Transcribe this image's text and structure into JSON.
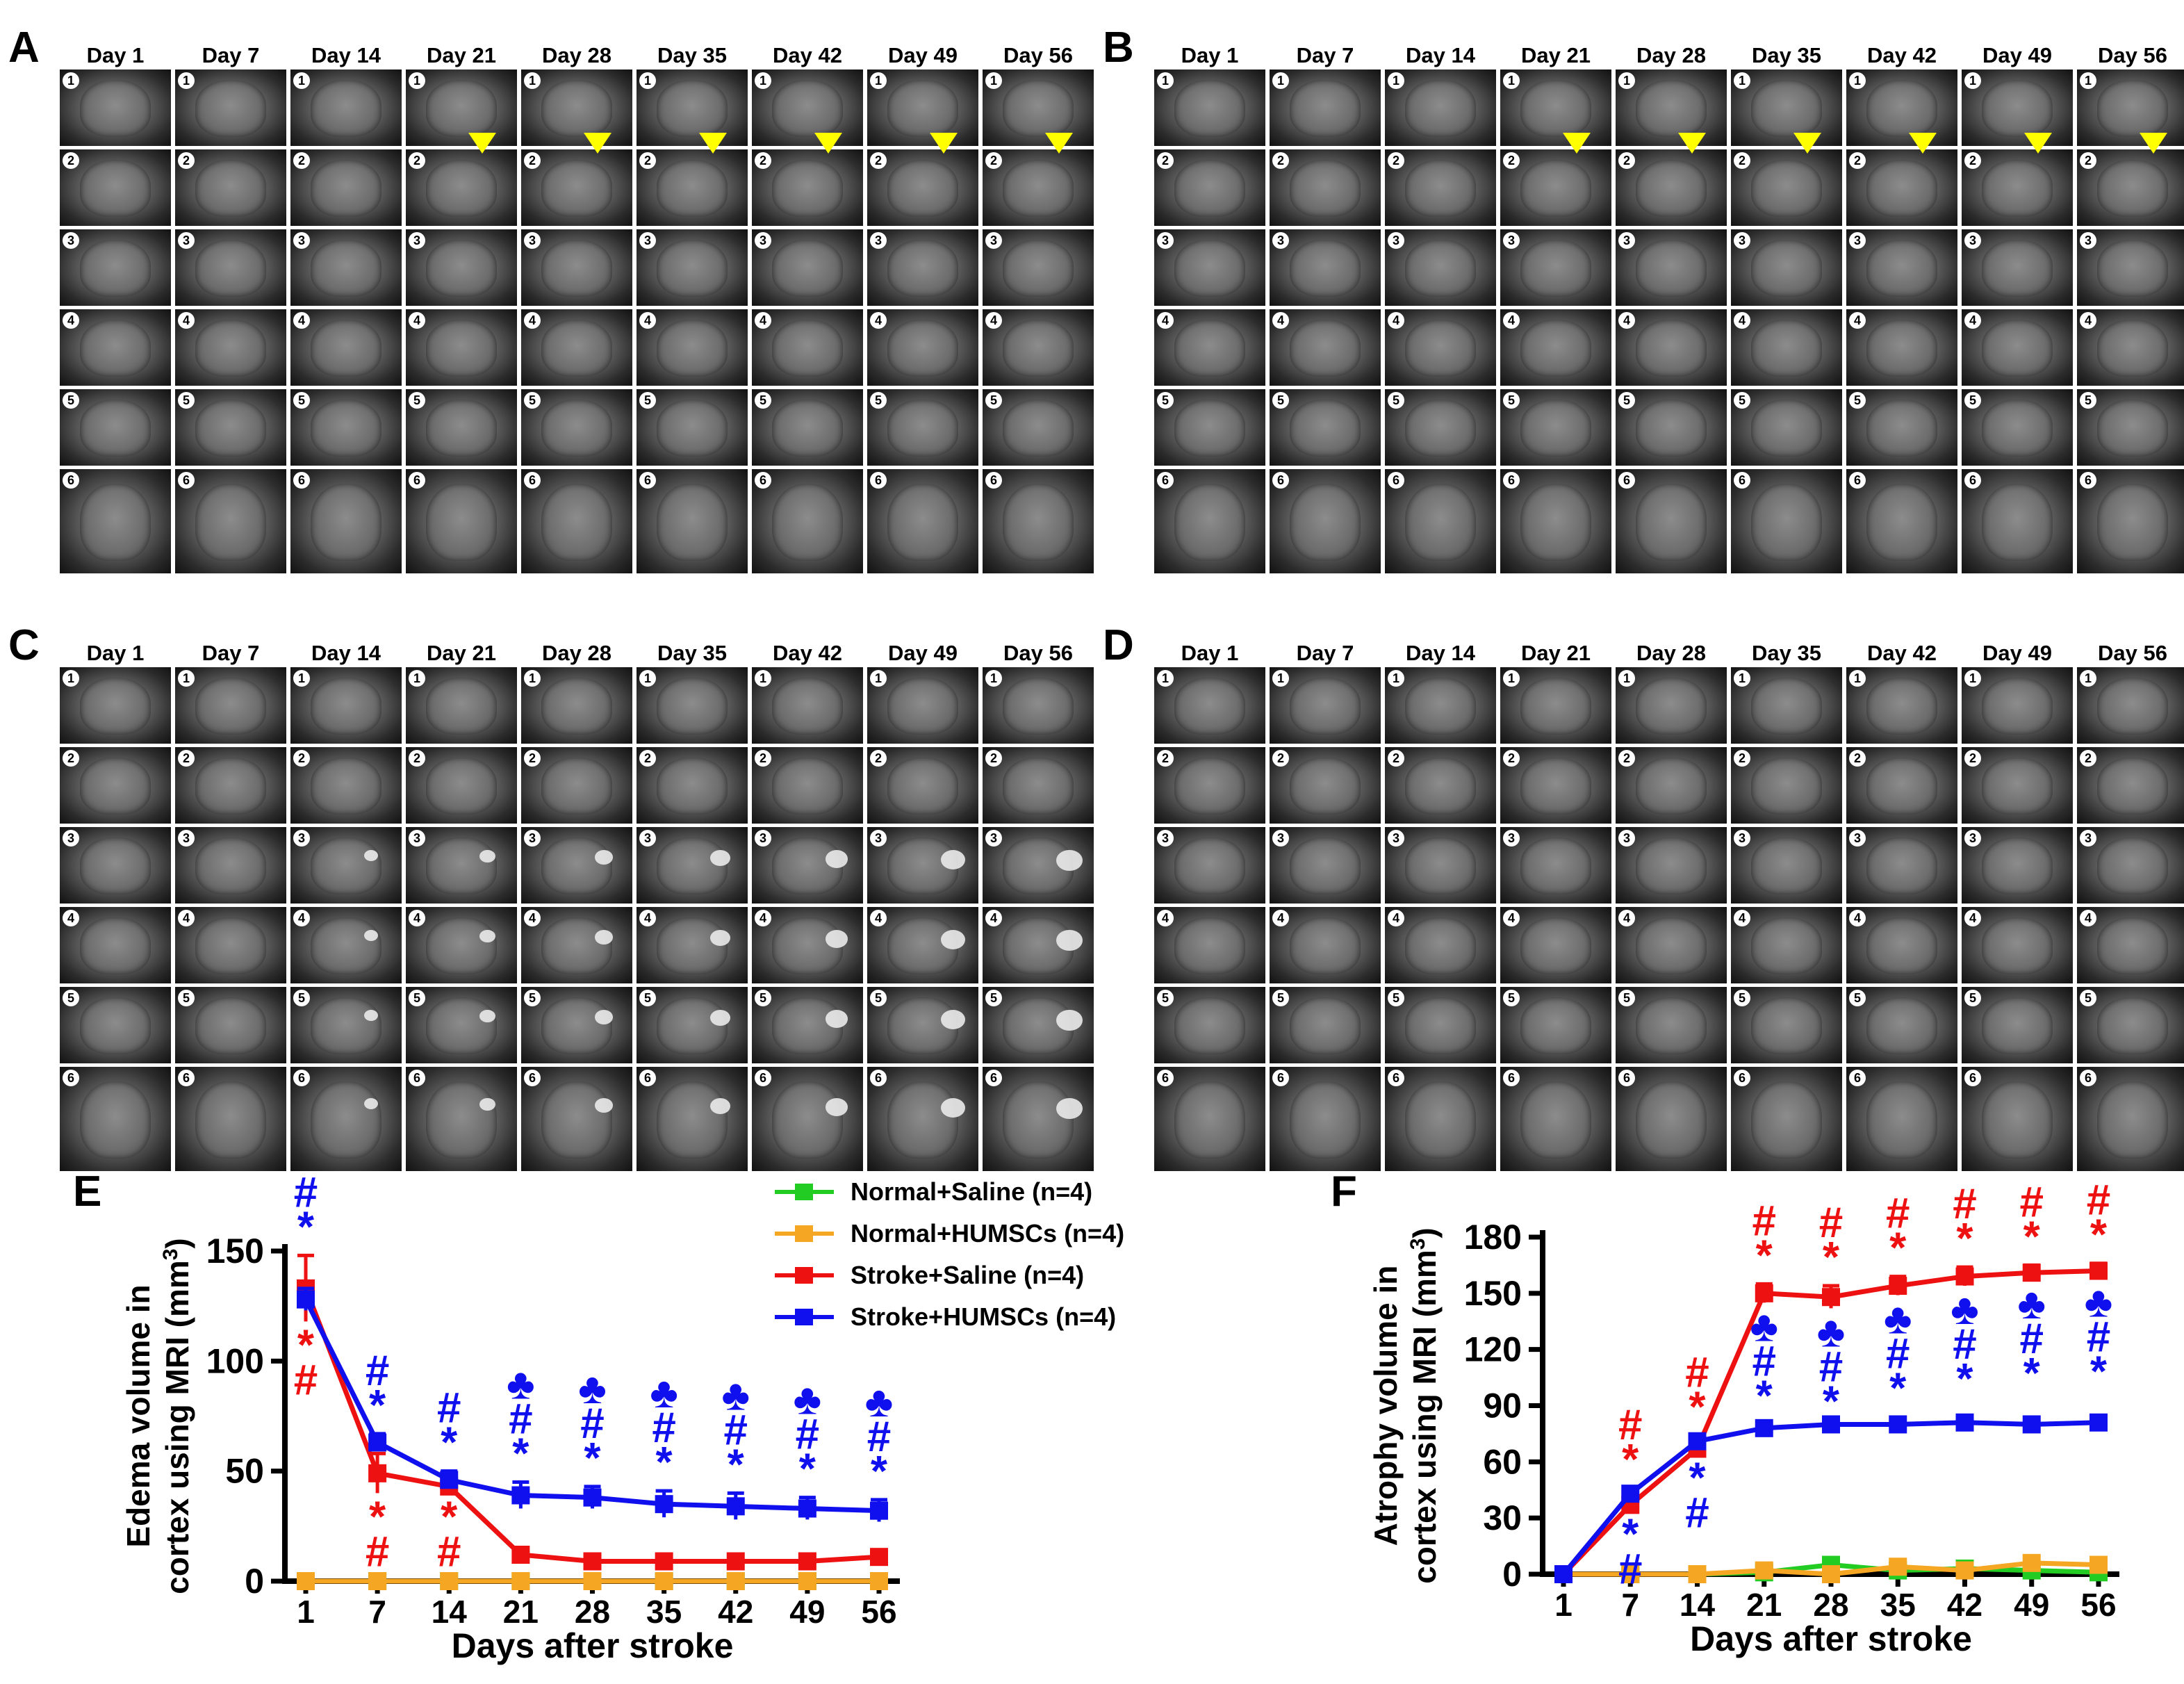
{
  "panels_mri": [
    {
      "letter": "A",
      "days": [
        "Day 1",
        "Day 7",
        "Day 14",
        "Day 21",
        "Day 28",
        "Day 35",
        "Day 42",
        "Day 49",
        "Day 56"
      ],
      "slices": [
        "1",
        "2",
        "3",
        "4",
        "5",
        "6"
      ],
      "arrow_days": [
        "Day 21",
        "Day 28",
        "Day 35",
        "Day 42",
        "Day 49",
        "Day 56"
      ]
    },
    {
      "letter": "B",
      "days": [
        "Day 1",
        "Day 7",
        "Day 14",
        "Day 21",
        "Day 28",
        "Day 35",
        "Day 42",
        "Day 49",
        "Day 56"
      ],
      "slices": [
        "1",
        "2",
        "3",
        "4",
        "5",
        "6"
      ],
      "arrow_days": [
        "Day 21",
        "Day 28",
        "Day 35",
        "Day 42",
        "Day 49",
        "Day 56"
      ]
    },
    {
      "letter": "C",
      "days": [
        "Day 1",
        "Day 7",
        "Day 14",
        "Day 21",
        "Day 28",
        "Day 35",
        "Day 42",
        "Day 49",
        "Day 56"
      ],
      "slices": [
        "1",
        "2",
        "3",
        "4",
        "5",
        "6"
      ],
      "arrow_days": []
    },
    {
      "letter": "D",
      "days": [
        "Day 1",
        "Day 7",
        "Day 14",
        "Day 21",
        "Day 28",
        "Day 35",
        "Day 42",
        "Day 49",
        "Day 56"
      ],
      "slices": [
        "1",
        "2",
        "3",
        "4",
        "5",
        "6"
      ],
      "arrow_days": []
    }
  ],
  "chart_data": [
    {
      "panel": "E",
      "type": "line",
      "ylabel_line1": "Edema volume in",
      "ylabel_line2": "cortex using MRI (mm",
      "ylabel_sup": "3",
      "ylabel_close": ")",
      "xlabel": "Days after stroke",
      "categories": [
        "1",
        "7",
        "14",
        "21",
        "28",
        "35",
        "42",
        "49",
        "56"
      ],
      "ylim": [
        0,
        150
      ],
      "yticks": [
        "0",
        "50",
        "100",
        "150"
      ],
      "series": [
        {
          "name": "Normal+Saline (n=4)",
          "color": "#22cc22",
          "values": [
            0,
            0,
            0,
            0,
            0,
            0,
            0,
            0,
            0
          ],
          "errors": [
            0,
            0,
            0,
            0,
            0,
            0,
            0,
            0,
            0
          ]
        },
        {
          "name": "Normal+HUMSCs (n=4)",
          "color": "#f5a623",
          "values": [
            0,
            0,
            0,
            0,
            0,
            0,
            0,
            0,
            0
          ],
          "errors": [
            0,
            0,
            0,
            0,
            0,
            0,
            0,
            0,
            0
          ]
        },
        {
          "name": "Stroke+Saline (n=4)",
          "color": "#ee1111",
          "values": [
            133,
            49,
            43,
            12,
            9,
            9,
            9,
            9,
            11
          ],
          "errors": [
            15,
            9,
            3,
            2,
            1,
            1,
            1,
            1,
            1
          ]
        },
        {
          "name": "Stroke+HUMSCs (n=4)",
          "color": "#1010ee",
          "values": [
            128,
            63,
            46,
            39,
            38,
            35,
            34,
            33,
            32
          ],
          "errors": [
            5,
            4,
            4,
            6,
            5,
            6,
            6,
            5,
            5
          ]
        }
      ],
      "annotations": [
        {
          "x": "1",
          "pos": "above",
          "color": "#1010ee",
          "glyphs": [
            "#",
            "*"
          ]
        },
        {
          "x": "1",
          "pos": "below",
          "color": "#ee1111",
          "glyphs": [
            "*",
            "#"
          ]
        },
        {
          "x": "7",
          "pos": "above",
          "color": "#1010ee",
          "glyphs": [
            "#",
            "*"
          ]
        },
        {
          "x": "7",
          "pos": "below",
          "color": "#ee1111",
          "glyphs": [
            "*",
            "#"
          ]
        },
        {
          "x": "14",
          "pos": "above",
          "color": "#1010ee",
          "glyphs": [
            "#",
            "*"
          ]
        },
        {
          "x": "14",
          "pos": "below",
          "color": "#ee1111",
          "glyphs": [
            "*",
            "#"
          ]
        },
        {
          "x": "21",
          "pos": "above",
          "color": "#1010ee",
          "glyphs": [
            "♣",
            "#",
            "*"
          ]
        },
        {
          "x": "28",
          "pos": "above",
          "color": "#1010ee",
          "glyphs": [
            "♣",
            "#",
            "*"
          ]
        },
        {
          "x": "35",
          "pos": "above",
          "color": "#1010ee",
          "glyphs": [
            "♣",
            "#",
            "*"
          ]
        },
        {
          "x": "42",
          "pos": "above",
          "color": "#1010ee",
          "glyphs": [
            "♣",
            "#",
            "*"
          ]
        },
        {
          "x": "49",
          "pos": "above",
          "color": "#1010ee",
          "glyphs": [
            "♣",
            "#",
            "*"
          ]
        },
        {
          "x": "56",
          "pos": "above",
          "color": "#1010ee",
          "glyphs": [
            "♣",
            "#",
            "*"
          ]
        }
      ]
    },
    {
      "panel": "F",
      "type": "line",
      "ylabel_line1": "Atrophy volume in",
      "ylabel_line2": "cortex using MRI (mm",
      "ylabel_sup": "3",
      "ylabel_close": ")",
      "xlabel": "Days after stroke",
      "categories": [
        "1",
        "7",
        "14",
        "21",
        "28",
        "35",
        "42",
        "49",
        "56"
      ],
      "ylim": [
        0,
        180
      ],
      "yticks": [
        "0",
        "30",
        "60",
        "90",
        "120",
        "150",
        "180"
      ],
      "series": [
        {
          "name": "Normal+Saline (n=4)",
          "color": "#22cc22",
          "values": [
            0,
            0,
            0,
            1,
            5,
            2,
            3,
            2,
            1
          ],
          "errors": [
            0,
            0,
            0,
            0,
            0,
            0,
            0,
            0,
            0
          ]
        },
        {
          "name": "Normal+HUMSCs (n=4)",
          "color": "#f5a623",
          "values": [
            0,
            0,
            0,
            2,
            0,
            4,
            2,
            6,
            5
          ],
          "errors": [
            0,
            0,
            0,
            0,
            0,
            0,
            0,
            0,
            0
          ]
        },
        {
          "name": "Stroke+Saline (n=4)",
          "color": "#ee1111",
          "values": [
            0,
            37,
            67,
            150,
            148,
            154,
            159,
            161,
            162
          ],
          "errors": [
            0,
            3,
            3,
            5,
            6,
            5,
            5,
            4,
            4
          ]
        },
        {
          "name": "Stroke+HUMSCs (n=4)",
          "color": "#1010ee",
          "values": [
            0,
            43,
            71,
            78,
            80,
            80,
            81,
            80,
            81
          ],
          "errors": [
            0,
            3,
            3,
            3,
            3,
            2,
            2,
            2,
            2
          ]
        }
      ],
      "annotations": [
        {
          "x": "7",
          "pos": "above",
          "color": "#ee1111",
          "glyphs": [
            "#",
            "*"
          ]
        },
        {
          "x": "7",
          "pos": "below",
          "color": "#1010ee",
          "glyphs": [
            "*",
            "#"
          ]
        },
        {
          "x": "14",
          "pos": "above",
          "color": "#ee1111",
          "glyphs": [
            "#",
            "*"
          ]
        },
        {
          "x": "14",
          "pos": "below",
          "color": "#1010ee",
          "glyphs": [
            "*",
            "#"
          ]
        },
        {
          "x": "21",
          "pos": "above",
          "color": "#ee1111",
          "glyphs": [
            "#",
            "*"
          ]
        },
        {
          "x": "28",
          "pos": "above",
          "color": "#ee1111",
          "glyphs": [
            "#",
            "*"
          ]
        },
        {
          "x": "35",
          "pos": "above",
          "color": "#ee1111",
          "glyphs": [
            "#",
            "*"
          ]
        },
        {
          "x": "42",
          "pos": "above",
          "color": "#ee1111",
          "glyphs": [
            "#",
            "*"
          ]
        },
        {
          "x": "49",
          "pos": "above",
          "color": "#ee1111",
          "glyphs": [
            "#",
            "*"
          ]
        },
        {
          "x": "56",
          "pos": "above",
          "color": "#ee1111",
          "glyphs": [
            "#",
            "*"
          ]
        },
        {
          "x": "21",
          "pos": "mid",
          "color": "#1010ee",
          "glyphs": [
            "♣",
            "#",
            "*"
          ]
        },
        {
          "x": "28",
          "pos": "mid",
          "color": "#1010ee",
          "glyphs": [
            "♣",
            "#",
            "*"
          ]
        },
        {
          "x": "35",
          "pos": "mid",
          "color": "#1010ee",
          "glyphs": [
            "♣",
            "#",
            "*"
          ]
        },
        {
          "x": "42",
          "pos": "mid",
          "color": "#1010ee",
          "glyphs": [
            "♣",
            "#",
            "*"
          ]
        },
        {
          "x": "49",
          "pos": "mid",
          "color": "#1010ee",
          "glyphs": [
            "♣",
            "#",
            "*"
          ]
        },
        {
          "x": "56",
          "pos": "mid",
          "color": "#1010ee",
          "glyphs": [
            "♣",
            "#",
            "*"
          ]
        }
      ]
    }
  ],
  "legend": [
    {
      "label": "Normal+Saline (n=4)",
      "color": "#22cc22"
    },
    {
      "label": "Normal+HUMSCs (n=4)",
      "color": "#f5a623"
    },
    {
      "label": "Stroke+Saline (n=4)",
      "color": "#ee1111"
    },
    {
      "label": "Stroke+HUMSCs (n=4)",
      "color": "#1010ee"
    }
  ]
}
